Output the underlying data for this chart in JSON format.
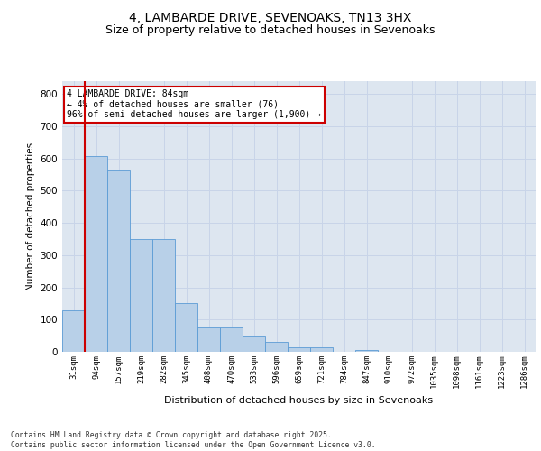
{
  "title1": "4, LAMBARDE DRIVE, SEVENOAKS, TN13 3HX",
  "title2": "Size of property relative to detached houses in Sevenoaks",
  "xlabel": "Distribution of detached houses by size in Sevenoaks",
  "ylabel": "Number of detached properties",
  "categories": [
    "31sqm",
    "94sqm",
    "157sqm",
    "219sqm",
    "282sqm",
    "345sqm",
    "408sqm",
    "470sqm",
    "533sqm",
    "596sqm",
    "659sqm",
    "721sqm",
    "784sqm",
    "847sqm",
    "910sqm",
    "972sqm",
    "1035sqm",
    "1098sqm",
    "1161sqm",
    "1223sqm",
    "1286sqm"
  ],
  "values": [
    128,
    607,
    563,
    350,
    350,
    150,
    75,
    75,
    48,
    30,
    14,
    13,
    0,
    7,
    0,
    0,
    0,
    0,
    0,
    0,
    0
  ],
  "bar_color": "#b8d0e8",
  "bar_edge_color": "#5b9bd5",
  "vline_color": "#cc0000",
  "annotation_text": "4 LAMBARDE DRIVE: 84sqm\n← 4% of detached houses are smaller (76)\n96% of semi-detached houses are larger (1,900) →",
  "annotation_box_color": "#ffffff",
  "annotation_box_edge": "#cc0000",
  "grid_color": "#c8d4e8",
  "background_color": "#dde6f0",
  "footer": "Contains HM Land Registry data © Crown copyright and database right 2025.\nContains public sector information licensed under the Open Government Licence v3.0.",
  "ylim": [
    0,
    840
  ],
  "yticks": [
    0,
    100,
    200,
    300,
    400,
    500,
    600,
    700,
    800
  ],
  "title1_fontsize": 10,
  "title2_fontsize": 9
}
